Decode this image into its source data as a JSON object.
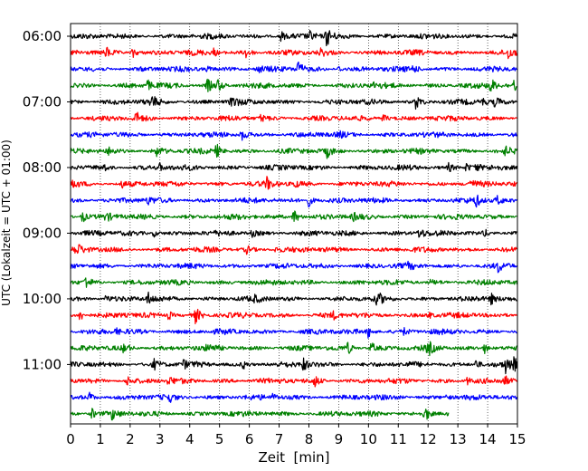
{
  "chart_data": {
    "type": "line",
    "title": "",
    "xlabel": "Zeit  [min]",
    "ylabel": "UTC (Lokalzeit = UTC + 01:00)",
    "xlim": [
      0,
      15
    ],
    "x_ticks": [
      "0",
      "1",
      "2",
      "3",
      "4",
      "5",
      "6",
      "7",
      "8",
      "9",
      "10",
      "11",
      "12",
      "13",
      "14",
      "15"
    ],
    "y_tick_labels": [
      "06:00",
      "07:00",
      "08:00",
      "09:00",
      "10:00",
      "11:00"
    ],
    "grid": "vertical dotted",
    "trace_interval_minutes": 15,
    "start_time": "06:00",
    "trace_colors": [
      "#000000",
      "#ff0000",
      "#0000ff",
      "#008000"
    ],
    "last_trace_end_minute": 12.7,
    "trace_count": 24,
    "events": [
      [
        [
          7.05,
          0.55
        ],
        [
          8.05,
          0.4
        ],
        [
          8.6,
          1.0
        ]
      ],
      [
        [
          1.2,
          0.45
        ],
        [
          2.1,
          0.55
        ],
        [
          4.8,
          0.35
        ],
        [
          5.9,
          0.6
        ],
        [
          8.4,
          0.35
        ],
        [
          14.7,
          0.5
        ]
      ],
      [
        [
          4.6,
          0.3
        ],
        [
          6.3,
          0.3
        ],
        [
          7.6,
          1.0
        ],
        [
          9.0,
          0.3
        ],
        [
          11.5,
          0.35
        ]
      ],
      [
        [
          2.6,
          0.45
        ],
        [
          4.6,
          0.7
        ],
        [
          4.95,
          0.55
        ],
        [
          10.2,
          0.3
        ],
        [
          14.1,
          0.75
        ],
        [
          14.9,
          0.7
        ]
      ],
      [
        [
          2.7,
          0.75
        ],
        [
          5.4,
          0.7
        ],
        [
          11.6,
          0.7
        ],
        [
          13.8,
          0.4
        ],
        [
          14.25,
          0.45
        ]
      ],
      [
        [
          2.2,
          0.55
        ],
        [
          6.4,
          0.35
        ],
        [
          10.5,
          0.45
        ]
      ],
      [
        [
          5.75,
          0.6
        ],
        [
          9.0,
          0.25
        ]
      ],
      [
        [
          1.3,
          0.3
        ],
        [
          2.9,
          0.45
        ],
        [
          4.9,
          0.65
        ],
        [
          8.6,
          0.55
        ],
        [
          14.6,
          0.35
        ]
      ],
      [
        [
          1.1,
          0.3
        ],
        [
          3.0,
          0.3
        ],
        [
          12.7,
          0.35
        ],
        [
          13.3,
          0.5
        ],
        [
          13.6,
          0.45
        ]
      ],
      [
        [
          0.1,
          0.5
        ],
        [
          1.7,
          0.35
        ],
        [
          6.6,
          0.55
        ],
        [
          7.5,
          0.35
        ],
        [
          13.4,
          0.3
        ]
      ],
      [
        [
          2.6,
          0.3
        ],
        [
          8.0,
          0.6
        ],
        [
          13.6,
          0.6
        ],
        [
          14.3,
          0.45
        ]
      ],
      [
        [
          0.4,
          0.6
        ],
        [
          1.2,
          0.35
        ],
        [
          7.5,
          0.85
        ],
        [
          9.5,
          0.3
        ]
      ],
      [
        [
          2.8,
          0.35
        ],
        [
          6.1,
          0.3
        ],
        [
          11.7,
          0.55
        ],
        [
          13.9,
          0.3
        ]
      ],
      [
        [
          0.2,
          0.65
        ],
        [
          5.9,
          0.35
        ],
        [
          6.9,
          0.3
        ]
      ],
      [
        [
          11.3,
          0.25
        ],
        [
          14.35,
          0.5
        ]
      ],
      [
        [
          0.5,
          0.6
        ],
        [
          12.1,
          0.25
        ]
      ],
      [
        [
          1.2,
          0.35
        ],
        [
          2.6,
          0.55
        ],
        [
          6.2,
          0.25
        ],
        [
          10.3,
          0.65
        ],
        [
          14.1,
          0.55
        ]
      ],
      [
        [
          0.3,
          0.65
        ],
        [
          3.3,
          0.45
        ],
        [
          4.2,
          0.75
        ],
        [
          8.8,
          0.35
        ],
        [
          12.0,
          0.35
        ]
      ],
      [
        [
          1.5,
          0.3
        ],
        [
          10.0,
          0.6
        ],
        [
          11.2,
          0.3
        ]
      ],
      [
        [
          1.8,
          0.45
        ],
        [
          4.6,
          0.35
        ],
        [
          9.3,
          0.55
        ],
        [
          10.1,
          0.55
        ],
        [
          12.0,
          0.7
        ],
        [
          13.9,
          0.45
        ]
      ],
      [
        [
          2.8,
          0.45
        ],
        [
          3.8,
          0.35
        ],
        [
          5.8,
          0.35
        ],
        [
          7.8,
          0.7
        ],
        [
          13.6,
          0.55
        ],
        [
          14.6,
          0.75
        ],
        [
          14.9,
          0.6
        ]
      ],
      [
        [
          1.9,
          0.45
        ],
        [
          3.3,
          0.35
        ],
        [
          8.2,
          0.55
        ],
        [
          13.3,
          0.4
        ],
        [
          14.55,
          0.55
        ]
      ],
      [
        [
          0.65,
          0.45
        ],
        [
          3.3,
          0.4
        ],
        [
          6.8,
          0.25
        ],
        [
          12.6,
          0.3
        ]
      ],
      [
        [
          0.7,
          0.6
        ],
        [
          1.4,
          0.5
        ],
        [
          11.9,
          0.85
        ]
      ]
    ]
  }
}
